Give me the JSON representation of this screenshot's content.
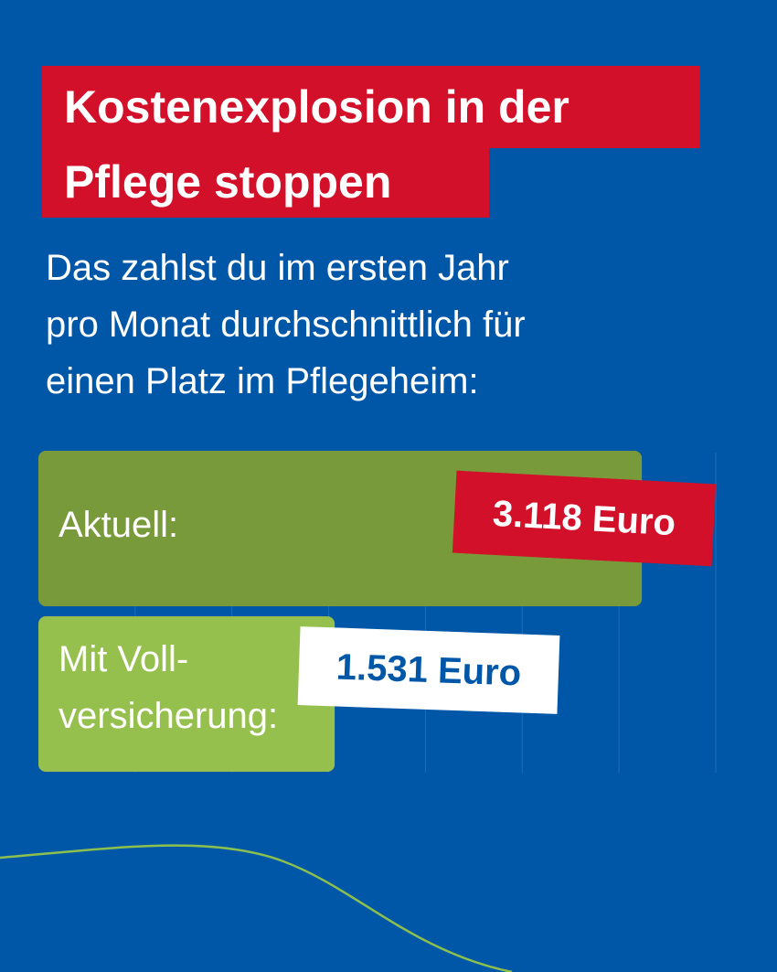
{
  "title": {
    "line1": "Kostenexplosion in der",
    "line2": "Pflege stoppen"
  },
  "subtitle": {
    "line1": "Das zahlst du im ersten Jahr",
    "line2": "pro Monat durchschnittlich für",
    "line3": "einen Platz im Pflegeheim:"
  },
  "colors": {
    "background": "#0057a8",
    "accent_red": "#d3102a",
    "bar_current": "#789a3a",
    "bar_full_insurance": "#96c04e",
    "white": "#ffffff"
  },
  "chart_data": {
    "type": "bar",
    "orientation": "horizontal",
    "unit": "Euro",
    "xlim": [
      0,
      3500
    ],
    "grid": true,
    "categories": [
      "Aktuell:",
      "Mit Voll-versicherung:"
    ],
    "category_lines": [
      [
        "Aktuell:"
      ],
      [
        "Mit Voll-",
        "versicherung:"
      ]
    ],
    "values": [
      3118,
      1531
    ],
    "value_labels": [
      "3.118 Euro",
      "1.531 Euro"
    ]
  }
}
